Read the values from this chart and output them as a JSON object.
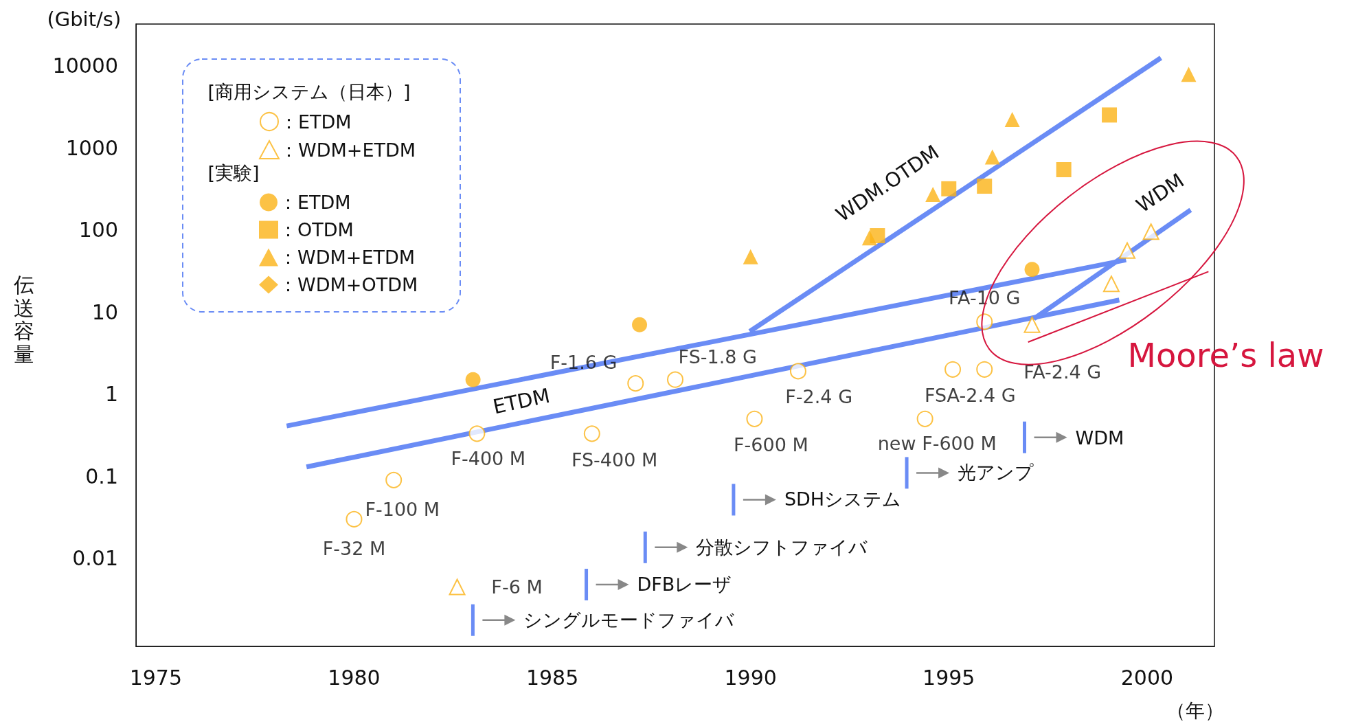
{
  "chart_data": {
    "type": "scatter",
    "ylabel": "伝送容量",
    "xlabel": "（年）",
    "log": "y",
    "xlim": [
      1974.5,
      2001.7
    ],
    "xticks": [
      1975,
      1980,
      1985,
      1990,
      1995,
      2000
    ],
    "ylim": [
      0.00085,
      32000
    ],
    "yticks": [
      0.01,
      0.1,
      1,
      10,
      100,
      1000,
      10000
    ],
    "grid": false,
    "legend": "top left",
    "series": [
      {
        "name": "：ETDM",
        "marker": "circle-open",
        "color": "#fbb316",
        "x": [
          1980.0,
          1981.0,
          1983.1,
          1986.0,
          1987.1,
          1988.1,
          1990.1,
          1991.2,
          1994.4,
          1995.1,
          1995.9,
          1995.9
        ],
        "values": [
          0.03,
          0.09,
          0.33,
          0.33,
          1.35,
          1.5,
          0.5,
          1.9,
          0.5,
          2,
          2,
          7.6
        ],
        "value_labels": [
          "F-32 M",
          "F-100 M",
          "F-400 M",
          "FS-400 M",
          "F-1.6 G",
          "FS-1.8 G",
          "F-600 M",
          "F-2.4 G",
          "new F-600 M",
          "FSA-2.4 G",
          "FA-2.4 G",
          "FA-10 G"
        ]
      },
      {
        "name": "：WDM+ETDM",
        "marker": "triangle-open",
        "color": "#fbb316",
        "x": [
          1982.6,
          1997.1,
          1999.1,
          1999.5,
          2000.1
        ],
        "values": [
          0.0045,
          7,
          22,
          56,
          95
        ],
        "value_labels": [
          "F-6 M",
          null,
          null,
          null,
          null
        ]
      },
      {
        "name": "：ETDM",
        "marker": "circle",
        "color": "#fbb316",
        "x": [
          1983.0,
          1987.2,
          1997.1
        ],
        "values": [
          1.5,
          7,
          33
        ]
      },
      {
        "name": "：OTDM",
        "marker": "square",
        "color": "#fbb316",
        "x": [
          1993.2,
          1995.0,
          1995.9,
          1997.9,
          1999.05
        ],
        "values": [
          85,
          316,
          340,
          540,
          2500
        ]
      },
      {
        "name": "：WDM+ETDM",
        "marker": "triangle",
        "color": "#fbb316",
        "x": [
          1990.0,
          1993.0,
          1994.6,
          1996.1,
          1996.6,
          2001.05
        ],
        "values": [
          47,
          80,
          270,
          770,
          2200,
          7800
        ]
      },
      {
        "name": "：WDM+OTDM",
        "marker": "diamond",
        "color": "#fbb316"
      },
      {
        "type": "line",
        "color": "#6a8cf5",
        "x": [
          1978.3,
          1999.47
        ],
        "values": [
          0.41,
          43
        ]
      },
      {
        "type": "line",
        "color": "#6a8cf5",
        "x": [
          1978.8,
          1999.3
        ],
        "values": [
          0.13,
          14
        ]
      },
      {
        "type": "line",
        "color": "#6a8cf5",
        "x": [
          1989.98,
          2000.35
        ],
        "values": [
          5.8,
          12400
        ]
      },
      {
        "type": "line",
        "color": "#6a8cf5",
        "x": [
          1997.15,
          2001.1
        ],
        "values": [
          8.3,
          175
        ]
      },
      {
        "type": "line",
        "color": "#d6163e",
        "x": [
          1997.0,
          2001.55
        ],
        "values": [
          4.3,
          31
        ]
      }
    ],
    "annotations": [
      "(Gbit/s)",
      "[商用システム（日本）]",
      "[実験]",
      "ETDM",
      "WDM.OTDM",
      "WDM",
      "Moore’s law",
      "シングルモードファイバ",
      "DFBレーザ",
      "分散シフトファイバ",
      "SDHシステム",
      "光アンプ",
      "WDM"
    ]
  }
}
